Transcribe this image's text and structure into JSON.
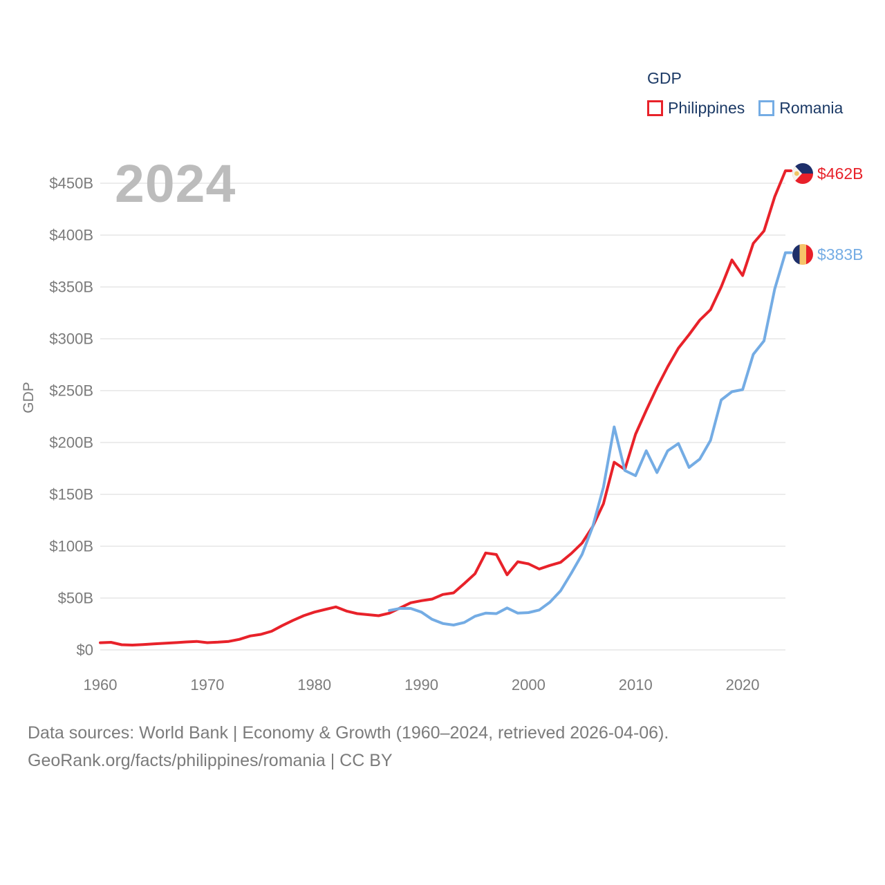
{
  "watermark": "2024",
  "legend": {
    "title": "GDP"
  },
  "footer": {
    "line1": "Data sources: World Bank | Economy & Growth (1960–2024, retrieved 2026-04-06).",
    "line2": "GeoRank.org/facts/philippines/romania | CC BY"
  },
  "colors": {
    "philippines": "#e8222a",
    "romania": "#74ace4",
    "grid": "#ececec",
    "tick_text": "#7b7b7b",
    "legend_text": "#1c3a66",
    "flag_navy": "#1d2f6a",
    "flag_gold": "#f6c46a",
    "flag_sun": "#f0c465",
    "flag_red": "#e8202a"
  },
  "chart_data": {
    "type": "line",
    "title": "GDP",
    "xlabel": "",
    "ylabel": "GDP",
    "x_range": [
      1960,
      2024
    ],
    "ylim": [
      0,
      466
    ],
    "grid": "horizontal-only",
    "legend_position": "top-right",
    "y_ticks": [
      {
        "v": 0,
        "label": "$0"
      },
      {
        "v": 50,
        "label": "$50B"
      },
      {
        "v": 100,
        "label": "$100B"
      },
      {
        "v": 150,
        "label": "$150B"
      },
      {
        "v": 200,
        "label": "$200B"
      },
      {
        "v": 250,
        "label": "$250B"
      },
      {
        "v": 300,
        "label": "$300B"
      },
      {
        "v": 350,
        "label": "$350B"
      },
      {
        "v": 400,
        "label": "$400B"
      },
      {
        "v": 450,
        "label": "$450B"
      }
    ],
    "x_ticks": [
      {
        "v": 1960,
        "label": "1960"
      },
      {
        "v": 1970,
        "label": "1970"
      },
      {
        "v": 1980,
        "label": "1980"
      },
      {
        "v": 1990,
        "label": "1990"
      },
      {
        "v": 2000,
        "label": "2000"
      },
      {
        "v": 2010,
        "label": "2010"
      },
      {
        "v": 2020,
        "label": "2020"
      }
    ],
    "series": [
      {
        "name": "Philippines",
        "color_key": "philippines",
        "start_year": 1960,
        "end_label": "$462B",
        "values": [
          6.9,
          7.3,
          5.0,
          4.7,
          5.2,
          5.8,
          6.4,
          7.0,
          7.7,
          8.2,
          7.0,
          7.5,
          8.2,
          10.2,
          13.5,
          15.0,
          18.0,
          23.5,
          28.5,
          33.0,
          36.5,
          39.0,
          41.5,
          37.5,
          35.0,
          34.0,
          33.0,
          35.5,
          40.5,
          45.5,
          47.5,
          49.0,
          53.5,
          55.0,
          64.0,
          73.5,
          93.5,
          92.0,
          72.5,
          85.0,
          83.0,
          78.0,
          81.5,
          84.5,
          93.0,
          103.0,
          119.0,
          141.0,
          181.0,
          174.0,
          208.0,
          231.0,
          253.0,
          273.0,
          291.0,
          304.0,
          318.0,
          328.0,
          350.0,
          376.0,
          361.0,
          392.0,
          404.0,
          437.0,
          462.0
        ]
      },
      {
        "name": "Romania",
        "color_key": "romania",
        "start_year": 1987,
        "end_label": "$383B",
        "values": [
          38.0,
          40.0,
          40.0,
          36.5,
          29.5,
          25.5,
          24.0,
          26.5,
          32.5,
          35.5,
          35.0,
          40.5,
          35.5,
          36.0,
          38.5,
          46.0,
          57.0,
          74.0,
          92.0,
          119.0,
          157.0,
          215.0,
          173.0,
          168.0,
          192.0,
          171.0,
          192.0,
          199.0,
          176.0,
          184.0,
          202.0,
          241.0,
          249.0,
          251.0,
          285.0,
          298.0,
          348.0,
          383.0
        ]
      }
    ]
  }
}
